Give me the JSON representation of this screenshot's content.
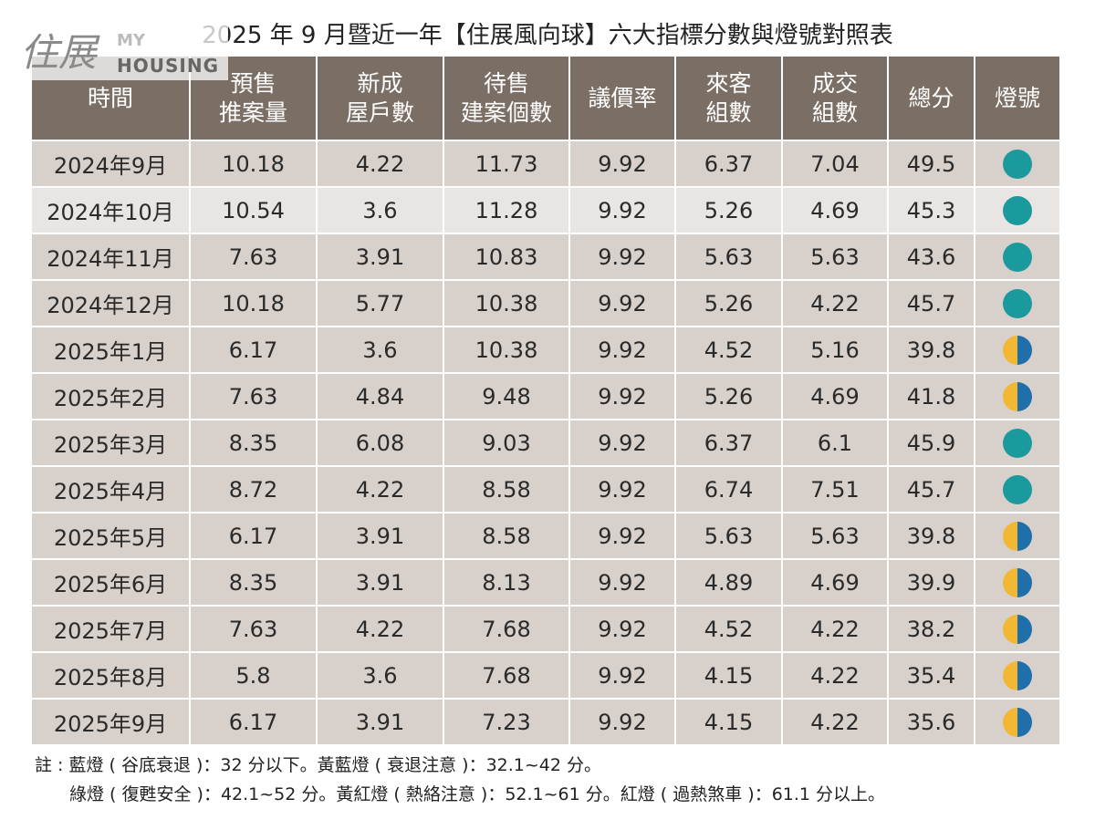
{
  "header": {
    "title": "2025 年 9 月暨近一年【住展風向球】六大指標分數與燈號對照表"
  },
  "logo": {
    "name": "住展",
    "line1": "MY",
    "line2": "HOUSING"
  },
  "table": {
    "columns": [
      [
        "時間"
      ],
      [
        "預售",
        "推案量"
      ],
      [
        "新成",
        "屋戶數"
      ],
      [
        "待售",
        "建案個數"
      ],
      [
        "議價率"
      ],
      [
        "來客",
        "組數"
      ],
      [
        "成交",
        "組數"
      ],
      [
        "總分"
      ],
      [
        "燈號"
      ]
    ],
    "rows": [
      [
        "2024年9月",
        10.18,
        4.22,
        11.73,
        9.92,
        6.37,
        7.04,
        49.5
      ],
      [
        "2024年10月",
        10.54,
        3.6,
        11.28,
        9.92,
        5.26,
        4.69,
        45.3
      ],
      [
        "2024年11月",
        7.63,
        3.91,
        10.83,
        9.92,
        5.63,
        5.63,
        43.6
      ],
      [
        "2024年12月",
        10.18,
        5.77,
        10.38,
        9.92,
        5.26,
        4.22,
        45.7
      ],
      [
        "2025年1月",
        6.17,
        3.6,
        10.38,
        9.92,
        4.52,
        5.16,
        39.8
      ],
      [
        "2025年2月",
        7.63,
        4.84,
        9.48,
        9.92,
        5.26,
        4.69,
        41.8
      ],
      [
        "2025年3月",
        8.35,
        6.08,
        9.03,
        9.92,
        6.37,
        6.1,
        45.9
      ],
      [
        "2025年4月",
        8.72,
        4.22,
        8.58,
        9.92,
        6.74,
        7.51,
        45.7
      ],
      [
        "2025年5月",
        6.17,
        3.91,
        8.58,
        9.92,
        5.63,
        5.63,
        39.8
      ],
      [
        "2025年6月",
        8.35,
        3.91,
        8.13,
        9.92,
        4.89,
        4.69,
        39.9
      ],
      [
        "2025年7月",
        7.63,
        4.22,
        7.68,
        9.92,
        4.52,
        4.22,
        38.2
      ],
      [
        "2025年8月",
        5.8,
        3.6,
        7.68,
        9.92,
        4.15,
        4.22,
        35.4
      ],
      [
        "2025年9月",
        6.17,
        3.91,
        7.23,
        9.92,
        4.15,
        4.22,
        35.6
      ]
    ],
    "lamps": [
      [
        "#1a9a9c"
      ],
      [
        "#1a9a9c"
      ],
      [
        "#1a9a9c"
      ],
      [
        "#1a9a9c"
      ],
      [
        "#f2b733",
        "#1f6fab"
      ],
      [
        "#f2b733",
        "#1f6fab"
      ],
      [
        "#1a9a9c"
      ],
      [
        "#1a9a9c"
      ],
      [
        "#f2b733",
        "#1f6fab"
      ],
      [
        "#f2b733",
        "#1f6fab"
      ],
      [
        "#f2b733",
        "#1f6fab"
      ],
      [
        "#f2b733",
        "#1f6fab"
      ],
      [
        "#f2b733",
        "#1f6fab"
      ]
    ]
  },
  "notes": [
    "註 : 藍燈 ( 谷底衰退 )：32 分以下。黃藍燈 ( 衰退注意 )：32.1~42 分。",
    "綠燈 ( 復甦安全 )：42.1~52 分。黃紅燈 ( 熱絡注意 )：52.1~61 分。紅燈 ( 過熱煞車 )：61.1 分以上。"
  ]
}
